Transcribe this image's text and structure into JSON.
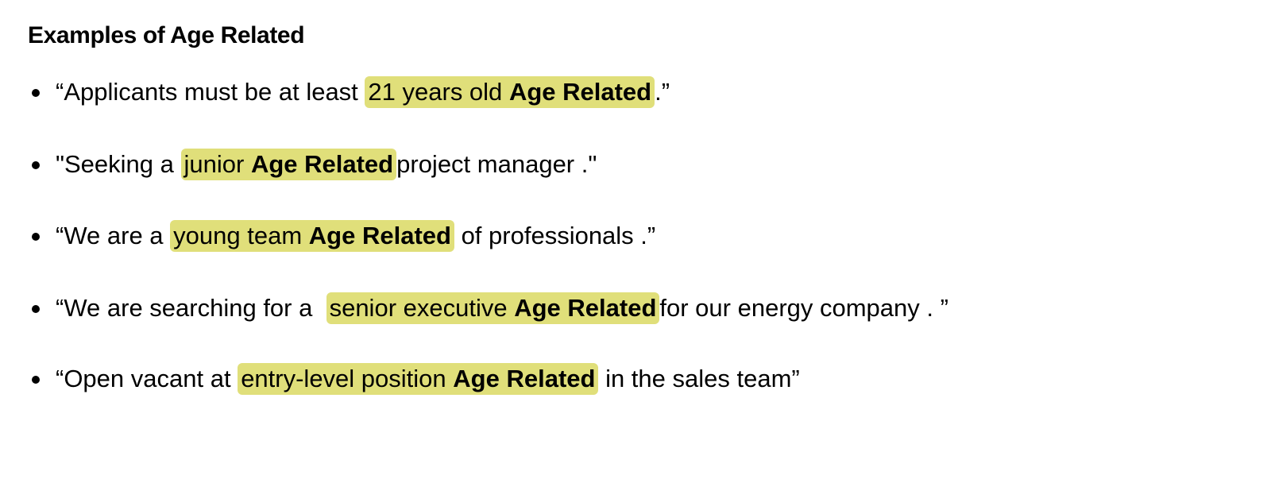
{
  "heading": "Examples of Age Related",
  "highlight_color": "#e0df7a",
  "examples": [
    {
      "before": "“Applicants must be at least ",
      "highlight": "21 years old",
      "tag": "Age Related",
      "after": ".”"
    },
    {
      "before": "\"Seeking a ",
      "highlight": "junior",
      "tag": "Age Related",
      "after": "project manager .\""
    },
    {
      "before": "“We are a ",
      "highlight": "young team",
      "tag": "Age Related",
      "after": " of professionals .”"
    },
    {
      "before": "“We are searching for a  ",
      "highlight": "senior executive",
      "tag": "Age Related",
      "after": "for our energy company . ”"
    },
    {
      "before": "“Open vacant at ",
      "highlight": "entry-level position",
      "tag": "Age Related",
      "after": " in the sales team”"
    }
  ]
}
